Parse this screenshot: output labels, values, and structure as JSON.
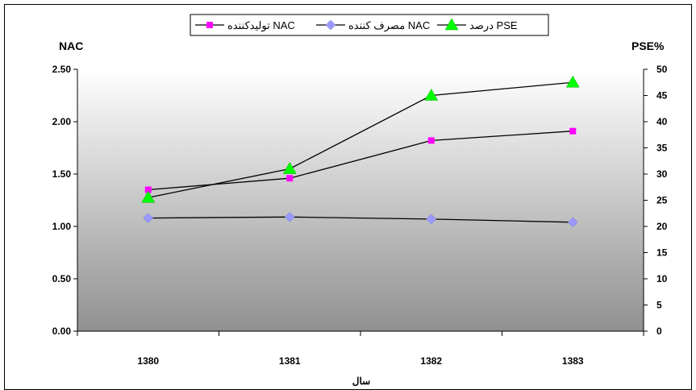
{
  "chart_data": {
    "type": "line",
    "categories": [
      "1380",
      "1381",
      "1382",
      "1383"
    ],
    "xlabel": "سال",
    "y_left": {
      "label": "NAC",
      "range": [
        0,
        2.5
      ],
      "ticks": [
        "0.00",
        "0.50",
        "1.00",
        "1.50",
        "2.00",
        "2.50"
      ]
    },
    "y_right": {
      "label": "PSE%",
      "range": [
        0,
        50
      ],
      "ticks": [
        "0",
        "5",
        "10",
        "15",
        "20",
        "25",
        "30",
        "35",
        "40",
        "45",
        "50"
      ]
    },
    "series": [
      {
        "name": "تولیدکننده NAC",
        "axis": "left",
        "marker": "square",
        "color": "#ff00ff",
        "values": [
          1.35,
          1.46,
          1.82,
          1.91
        ]
      },
      {
        "name": "مصرف کننده NAC",
        "axis": "left",
        "marker": "diamond",
        "color": "#9999ff",
        "values": [
          1.08,
          1.09,
          1.07,
          1.04
        ]
      },
      {
        "name": "درصد PSE",
        "axis": "right",
        "marker": "triangle",
        "color": "#00ff00",
        "values": [
          25.5,
          31,
          45,
          47.5
        ]
      }
    ],
    "legend_position": "top-center",
    "plot_background": "gradient white-to-gray"
  }
}
